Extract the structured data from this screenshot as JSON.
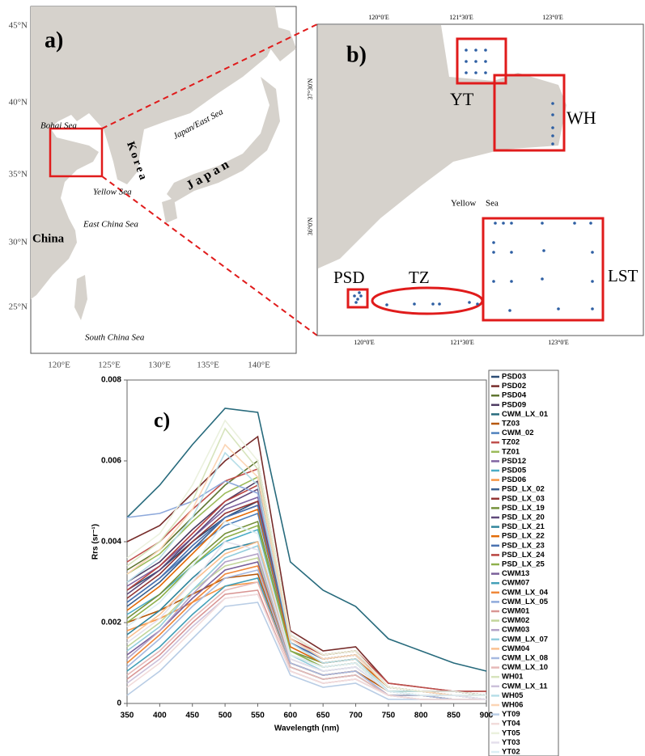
{
  "panel_a": {
    "label": "a)",
    "lat_labels": [
      "45°N",
      "40°N",
      "35°N",
      "30°N",
      "25°N"
    ],
    "lon_labels": [
      "120°E",
      "125°E",
      "130°E",
      "135°E",
      "140°E"
    ],
    "places": [
      "Bohai Sea",
      "Korea",
      "Japan/East Sea",
      "Japan",
      "Yellow Sea",
      "East China Sea",
      "China",
      "South China Sea"
    ]
  },
  "panel_b": {
    "label": "b)",
    "top_lon_labels": [
      "120°0'E",
      "121°30'E",
      "123°0'E"
    ],
    "bottom_lon_labels": [
      "120°0'E",
      "121°30'E",
      "123°0'E"
    ],
    "lat_labels": [
      "37°30'N",
      "36°0'N"
    ],
    "places": [
      "YT",
      "WH",
      "Yellow",
      "Sea",
      "PSD",
      "TZ",
      "LST"
    ]
  },
  "chart_data": {
    "type": "line",
    "panel_label": "c)",
    "x_label": "Wavelength (nm)",
    "y_label": "Rrs (sr⁻¹)",
    "x": [
      350,
      400,
      450,
      500,
      550,
      600,
      650,
      700,
      750,
      800,
      850,
      900
    ],
    "xlim": [
      350,
      900
    ],
    "xticks": [
      350,
      400,
      450,
      500,
      550,
      600,
      650,
      700,
      750,
      800,
      850,
      900
    ],
    "ylim": [
      0,
      0.008
    ],
    "yticks": [
      0,
      0.002,
      0.004,
      0.006,
      0.008
    ],
    "series": [
      {
        "name": "PSD03",
        "color": "#2c4d75",
        "values": [
          0.0028,
          0.0033,
          0.004,
          0.0046,
          0.005,
          0.0015,
          0.0011,
          0.0012,
          0.0004,
          0.0003,
          0.0003,
          0.0002
        ]
      },
      {
        "name": "PSD02",
        "color": "#772c2a",
        "values": [
          0.004,
          0.0044,
          0.0052,
          0.006,
          0.0066,
          0.0018,
          0.0013,
          0.0014,
          0.0005,
          0.0004,
          0.0003,
          0.0003
        ]
      },
      {
        "name": "PSD04",
        "color": "#5f7530",
        "values": [
          0.0033,
          0.0038,
          0.0046,
          0.0054,
          0.006,
          0.0017,
          0.0012,
          0.0013,
          0.0004,
          0.0003,
          0.0003,
          0.0002
        ]
      },
      {
        "name": "PSD09",
        "color": "#4d3b62",
        "values": [
          0.003,
          0.0035,
          0.0043,
          0.005,
          0.0055,
          0.0016,
          0.0011,
          0.0012,
          0.0004,
          0.0003,
          0.0002,
          0.0002
        ]
      },
      {
        "name": "CWM_LX_01",
        "color": "#276a7c",
        "values": [
          0.0046,
          0.0054,
          0.0064,
          0.0073,
          0.0072,
          0.0035,
          0.0028,
          0.0024,
          0.0016,
          0.0013,
          0.001,
          0.0008
        ]
      },
      {
        "name": "TZ03",
        "color": "#b65708",
        "values": [
          0.002,
          0.0023,
          0.0027,
          0.0031,
          0.0032,
          0.001,
          0.0007,
          0.0008,
          0.0003,
          0.0002,
          0.0002,
          0.0001
        ]
      },
      {
        "name": "CWM_02",
        "color": "#4f81bd",
        "values": [
          0.0025,
          0.0031,
          0.0038,
          0.0044,
          0.0047,
          0.0014,
          0.001,
          0.0011,
          0.0004,
          0.0003,
          0.0002,
          0.0002
        ]
      },
      {
        "name": "TZ02",
        "color": "#c0504d",
        "values": [
          0.0035,
          0.004,
          0.0048,
          0.0055,
          0.0058,
          0.0017,
          0.0012,
          0.0013,
          0.0005,
          0.0004,
          0.0003,
          0.0003
        ]
      },
      {
        "name": "TZ01",
        "color": "#9bbb59",
        "values": [
          0.0032,
          0.0037,
          0.0045,
          0.0052,
          0.0056,
          0.0016,
          0.0012,
          0.0013,
          0.0004,
          0.0003,
          0.0003,
          0.0002
        ]
      },
      {
        "name": "PSD12",
        "color": "#8064a2",
        "values": [
          0.0029,
          0.0034,
          0.0041,
          0.0048,
          0.0051,
          0.0015,
          0.0011,
          0.0012,
          0.0004,
          0.0003,
          0.0002,
          0.0002
        ]
      },
      {
        "name": "PSD05",
        "color": "#4bacc6",
        "values": [
          0.0022,
          0.0027,
          0.0034,
          0.004,
          0.0043,
          0.0013,
          0.0009,
          0.001,
          0.0003,
          0.0002,
          0.0002,
          0.0002
        ]
      },
      {
        "name": "PSD06",
        "color": "#f79646",
        "values": [
          0.0018,
          0.0021,
          0.0025,
          0.0029,
          0.003,
          0.0009,
          0.0006,
          0.0007,
          0.0002,
          0.0002,
          0.0001,
          0.0001
        ]
      },
      {
        "name": "PSD_LX_02",
        "color": "#3a5f8f",
        "values": [
          0.0024,
          0.003,
          0.0038,
          0.0046,
          0.0049,
          0.0015,
          0.0011,
          0.0012,
          0.0004,
          0.0003,
          0.0002,
          0.0002
        ]
      },
      {
        "name": "PSD_LX_03",
        "color": "#943634",
        "values": [
          0.0026,
          0.0032,
          0.004,
          0.0047,
          0.005,
          0.0015,
          0.0011,
          0.0012,
          0.0004,
          0.0003,
          0.0003,
          0.0002
        ]
      },
      {
        "name": "PSD_LX_19",
        "color": "#76923c",
        "values": [
          0.0021,
          0.0027,
          0.0035,
          0.0042,
          0.0045,
          0.0013,
          0.001,
          0.0011,
          0.0003,
          0.0003,
          0.0002,
          0.0002
        ]
      },
      {
        "name": "PSD_LX_20",
        "color": "#5f497a",
        "values": [
          0.0027,
          0.0033,
          0.0041,
          0.0049,
          0.0053,
          0.0016,
          0.0011,
          0.0012,
          0.0004,
          0.0003,
          0.0003,
          0.0002
        ]
      },
      {
        "name": "PSD_LX_21",
        "color": "#31859c",
        "values": [
          0.0017,
          0.0023,
          0.0031,
          0.0038,
          0.004,
          0.0012,
          0.0009,
          0.001,
          0.0003,
          0.0002,
          0.0002,
          0.0002
        ]
      },
      {
        "name": "PSD_LX_22",
        "color": "#e36c09",
        "values": [
          0.0023,
          0.0029,
          0.0037,
          0.0045,
          0.0048,
          0.0014,
          0.001,
          0.0011,
          0.0004,
          0.0003,
          0.0002,
          0.0002
        ]
      },
      {
        "name": "PSD_LX_23",
        "color": "#4a72b0",
        "values": [
          0.0025,
          0.0031,
          0.0039,
          0.0046,
          0.0049,
          0.0015,
          0.0011,
          0.0012,
          0.0004,
          0.0003,
          0.0002,
          0.0002
        ]
      },
      {
        "name": "PSD_LX_24",
        "color": "#b8433f",
        "values": [
          0.0028,
          0.0034,
          0.0042,
          0.005,
          0.0054,
          0.0016,
          0.0012,
          0.0013,
          0.0004,
          0.0003,
          0.0003,
          0.0002
        ]
      },
      {
        "name": "PSD_LX_25",
        "color": "#8fb04c",
        "values": [
          0.002,
          0.0026,
          0.0034,
          0.0041,
          0.0044,
          0.0013,
          0.0009,
          0.001,
          0.0003,
          0.0002,
          0.0002,
          0.0002
        ]
      },
      {
        "name": "CWM13",
        "color": "#7a5f99",
        "values": [
          0.0012,
          0.0018,
          0.0026,
          0.0033,
          0.0035,
          0.001,
          0.0007,
          0.0008,
          0.0002,
          0.0002,
          0.0001,
          0.0001
        ]
      },
      {
        "name": "CWM07",
        "color": "#43a0b8",
        "values": [
          0.0008,
          0.0014,
          0.0022,
          0.0029,
          0.0031,
          0.0009,
          0.0006,
          0.0007,
          0.0002,
          0.0002,
          0.0001,
          0.0001
        ]
      },
      {
        "name": "CWM_LX_04",
        "color": "#f0883a",
        "values": [
          0.001,
          0.0017,
          0.0025,
          0.0032,
          0.0034,
          0.001,
          0.0007,
          0.0008,
          0.0002,
          0.0002,
          0.0001,
          0.0001
        ]
      },
      {
        "name": "CWM_LX_05",
        "color": "#8ea9db",
        "values": [
          0.0046,
          0.0047,
          0.005,
          0.0055,
          0.0052,
          0.0016,
          0.0011,
          0.0012,
          0.0004,
          0.0003,
          0.0003,
          0.0002
        ]
      },
      {
        "name": "CWM01",
        "color": "#d99694",
        "values": [
          0.0006,
          0.0012,
          0.002,
          0.0027,
          0.0028,
          0.0008,
          0.0005,
          0.0006,
          0.0002,
          0.0001,
          0.0001,
          0.0001
        ]
      },
      {
        "name": "CWM02",
        "color": "#c3d69b",
        "values": [
          0.0014,
          0.002,
          0.0028,
          0.0034,
          0.0036,
          0.0011,
          0.0008,
          0.0009,
          0.0003,
          0.0002,
          0.0002,
          0.0001
        ]
      },
      {
        "name": "CWM03",
        "color": "#b3a2c7",
        "values": [
          0.0011,
          0.0018,
          0.0027,
          0.0035,
          0.0037,
          0.0011,
          0.0008,
          0.0009,
          0.0003,
          0.0002,
          0.0002,
          0.0001
        ]
      },
      {
        "name": "CWM_LX_07",
        "color": "#93cddd",
        "values": [
          0.0013,
          0.0019,
          0.0028,
          0.0036,
          0.0039,
          0.0012,
          0.0008,
          0.0009,
          0.0003,
          0.0002,
          0.0002,
          0.0001
        ]
      },
      {
        "name": "CWM04",
        "color": "#fac090",
        "values": [
          0.0016,
          0.0022,
          0.003,
          0.0037,
          0.004,
          0.0012,
          0.0009,
          0.001,
          0.0003,
          0.0002,
          0.0002,
          0.0002
        ]
      },
      {
        "name": "CWM_LX_08",
        "color": "#a6b9e0",
        "values": [
          0.0009,
          0.0016,
          0.0024,
          0.0031,
          0.0033,
          0.001,
          0.0007,
          0.0008,
          0.0002,
          0.0002,
          0.0001,
          0.0001
        ]
      },
      {
        "name": "CWM_LX_10",
        "color": "#e6b9b8",
        "values": [
          0.0007,
          0.0013,
          0.0021,
          0.0028,
          0.003,
          0.0009,
          0.0006,
          0.0007,
          0.0002,
          0.0001,
          0.0001,
          0.0001
        ]
      },
      {
        "name": "WH01",
        "color": "#d7e4bd",
        "values": [
          0.0034,
          0.004,
          0.005,
          0.0068,
          0.0058,
          0.0016,
          0.0011,
          0.0012,
          0.0004,
          0.0003,
          0.0002,
          0.0002
        ]
      },
      {
        "name": "CWM_LX_11",
        "color": "#ccc1da",
        "values": [
          0.0005,
          0.0011,
          0.0019,
          0.0026,
          0.0027,
          0.0008,
          0.0005,
          0.0006,
          0.0002,
          0.0001,
          0.0001,
          0.0001
        ]
      },
      {
        "name": "WH05",
        "color": "#b7dee8",
        "values": [
          0.003,
          0.0036,
          0.0046,
          0.0062,
          0.0054,
          0.0015,
          0.001,
          0.0011,
          0.0003,
          0.0003,
          0.0002,
          0.0002
        ]
      },
      {
        "name": "WH06",
        "color": "#fbd5b5",
        "values": [
          0.0032,
          0.0038,
          0.0048,
          0.0064,
          0.0056,
          0.0016,
          0.0011,
          0.0012,
          0.0004,
          0.0003,
          0.0002,
          0.0002
        ]
      },
      {
        "name": "YT09",
        "color": "#b9cde5",
        "values": [
          0.0002,
          0.0008,
          0.0016,
          0.0024,
          0.0025,
          0.0007,
          0.0004,
          0.0005,
          0.0001,
          0.0001,
          0.0001,
          0.0001
        ]
      },
      {
        "name": "YT04",
        "color": "#f2dcdb",
        "values": [
          0.0004,
          0.001,
          0.0018,
          0.0026,
          0.0027,
          0.0008,
          0.0005,
          0.0006,
          0.0002,
          0.0001,
          0.0001,
          0.0001
        ]
      },
      {
        "name": "YT05",
        "color": "#ebf1de",
        "values": [
          0.0036,
          0.0042,
          0.0054,
          0.007,
          0.006,
          0.0017,
          0.0012,
          0.0013,
          0.0004,
          0.0003,
          0.0003,
          0.0002
        ]
      },
      {
        "name": "YT03",
        "color": "#e5e0ec",
        "values": [
          0.0015,
          0.0021,
          0.003,
          0.004,
          0.0038,
          0.0011,
          0.0008,
          0.0009,
          0.0003,
          0.0002,
          0.0002,
          0.0001
        ]
      },
      {
        "name": "YT02",
        "color": "#dbeef4",
        "values": [
          0.0019,
          0.0025,
          0.0034,
          0.0045,
          0.0042,
          0.0012,
          0.0009,
          0.001,
          0.0003,
          0.0002,
          0.0002,
          0.0002
        ]
      }
    ]
  }
}
